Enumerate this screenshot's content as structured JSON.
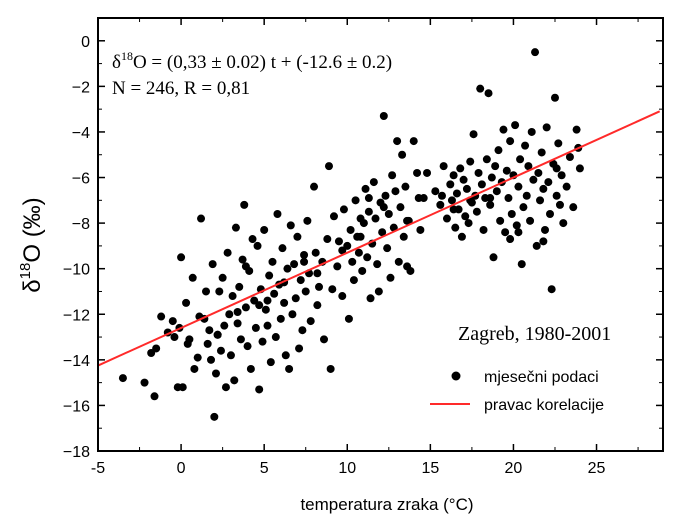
{
  "chart_data": {
    "type": "scatter",
    "xlabel": "temperatura zraka (°C)",
    "ylabel": {
      "prefix": "δ",
      "sup": "18",
      "rest": "O (‰)"
    },
    "xlim": [
      -5,
      29
    ],
    "ylim": [
      -18,
      1
    ],
    "xticks": [
      -5,
      0,
      5,
      10,
      15,
      20,
      25
    ],
    "yticks": [
      0,
      -2,
      -4,
      -6,
      -8,
      -10,
      -12,
      -14,
      -16,
      -18
    ],
    "equation": {
      "line1_prefix": "δ",
      "line1_sup": "18",
      "line1_rest": "O = (0,33 ± 0.02) t + (-12.6 ± 0.2)",
      "line2": "N = 246, R = 0,81"
    },
    "legend": {
      "title": "Zagreb, 1980-2001",
      "points_label": "mjesečni podaci",
      "line_label": "pravac korelacije",
      "placement": "lower-right"
    },
    "regression": {
      "slope": 0.33,
      "intercept": -12.6,
      "x_range": [
        -5,
        28.8
      ],
      "color": "#ff2a2a"
    },
    "point_color": "#000000",
    "series": [
      {
        "values": [
          [
            -3.5,
            -14.8
          ],
          [
            -2.2,
            -15.0
          ],
          [
            -1.8,
            -13.7
          ],
          [
            -1.6,
            -15.6
          ],
          [
            -1.5,
            -13.5
          ],
          [
            -1.2,
            -12.1
          ],
          [
            -0.8,
            -12.8
          ],
          [
            -0.5,
            -12.3
          ],
          [
            -0.2,
            -15.2
          ],
          [
            -0.1,
            -12.6
          ],
          [
            0.0,
            -9.5
          ],
          [
            0.1,
            -15.2
          ],
          [
            0.3,
            -11.5
          ],
          [
            0.5,
            -13.1
          ],
          [
            0.7,
            -10.4
          ],
          [
            0.8,
            -14.4
          ],
          [
            1.0,
            -13.9
          ],
          [
            1.2,
            -7.8
          ],
          [
            1.4,
            -12.2
          ],
          [
            1.5,
            -11.0
          ],
          [
            1.6,
            -13.3
          ],
          [
            1.7,
            -12.7
          ],
          [
            1.8,
            -14.0
          ],
          [
            1.9,
            -9.8
          ],
          [
            2.0,
            -16.5
          ],
          [
            2.1,
            -14.6
          ],
          [
            2.2,
            -12.9
          ],
          [
            2.3,
            -11.0
          ],
          [
            2.4,
            -13.6
          ],
          [
            2.5,
            -10.4
          ],
          [
            2.6,
            -12.5
          ],
          [
            2.7,
            -15.2
          ],
          [
            2.8,
            -9.3
          ],
          [
            2.9,
            -12.0
          ],
          [
            3.0,
            -13.8
          ],
          [
            3.1,
            -11.2
          ],
          [
            3.2,
            -14.9
          ],
          [
            3.3,
            -8.2
          ],
          [
            3.4,
            -12.4
          ],
          [
            3.5,
            -10.8
          ],
          [
            3.6,
            -13.1
          ],
          [
            3.7,
            -9.6
          ],
          [
            3.8,
            -7.2
          ],
          [
            3.9,
            -11.7
          ],
          [
            4.0,
            -13.4
          ],
          [
            4.1,
            -10.1
          ],
          [
            4.2,
            -14.4
          ],
          [
            4.3,
            -8.7
          ],
          [
            4.4,
            -11.4
          ],
          [
            4.5,
            -12.6
          ],
          [
            4.6,
            -9.0
          ],
          [
            4.7,
            -15.3
          ],
          [
            4.8,
            -10.9
          ],
          [
            4.9,
            -13.2
          ],
          [
            5.0,
            -8.3
          ],
          [
            5.1,
            -11.8
          ],
          [
            5.2,
            -12.5
          ],
          [
            5.3,
            -10.3
          ],
          [
            5.4,
            -14.1
          ],
          [
            5.5,
            -9.7
          ],
          [
            5.6,
            -11.1
          ],
          [
            5.7,
            -13.0
          ],
          [
            5.8,
            -7.6
          ],
          [
            5.9,
            -10.7
          ],
          [
            6.0,
            -12.2
          ],
          [
            6.1,
            -9.1
          ],
          [
            6.2,
            -11.5
          ],
          [
            6.3,
            -13.8
          ],
          [
            6.4,
            -10.0
          ],
          [
            6.5,
            -14.4
          ],
          [
            6.6,
            -8.1
          ],
          [
            6.7,
            -12.0
          ],
          [
            6.8,
            -9.8
          ],
          [
            6.9,
            -11.3
          ],
          [
            7.0,
            -8.6
          ],
          [
            7.1,
            -13.5
          ],
          [
            7.2,
            -10.5
          ],
          [
            7.3,
            -12.7
          ],
          [
            7.4,
            -9.4
          ],
          [
            7.5,
            -11.0
          ],
          [
            7.6,
            -7.9
          ],
          [
            7.7,
            -10.2
          ],
          [
            7.8,
            -12.3
          ],
          [
            8.0,
            -6.4
          ],
          [
            8.1,
            -9.3
          ],
          [
            8.2,
            -11.6
          ],
          [
            8.3,
            -10.8
          ],
          [
            8.5,
            -9.7
          ],
          [
            8.6,
            -13.1
          ],
          [
            8.8,
            -8.7
          ],
          [
            8.9,
            -5.5
          ],
          [
            9.0,
            -14.4
          ],
          [
            9.1,
            -10.9
          ],
          [
            9.2,
            -7.7
          ],
          [
            9.4,
            -9.9
          ],
          [
            9.5,
            -8.8
          ],
          [
            9.7,
            -11.2
          ],
          [
            9.8,
            -7.4
          ],
          [
            10.0,
            -9.0
          ],
          [
            10.1,
            -12.2
          ],
          [
            10.2,
            -8.3
          ],
          [
            10.3,
            -9.7
          ],
          [
            10.4,
            -10.5
          ],
          [
            10.5,
            -7.0
          ],
          [
            10.6,
            -8.6
          ],
          [
            10.7,
            -9.3
          ],
          [
            10.8,
            -7.8
          ],
          [
            10.9,
            -10.1
          ],
          [
            11.0,
            -8.0
          ],
          [
            11.1,
            -6.5
          ],
          [
            11.2,
            -9.5
          ],
          [
            11.3,
            -7.5
          ],
          [
            11.4,
            -11.3
          ],
          [
            11.5,
            -8.9
          ],
          [
            11.6,
            -6.2
          ],
          [
            11.7,
            -7.8
          ],
          [
            11.8,
            -9.8
          ],
          [
            11.9,
            -11.0
          ],
          [
            12.0,
            -7.1
          ],
          [
            12.1,
            -8.4
          ],
          [
            12.2,
            -3.3
          ],
          [
            12.3,
            -6.8
          ],
          [
            12.4,
            -9.1
          ],
          [
            12.5,
            -7.6
          ],
          [
            12.6,
            -10.4
          ],
          [
            12.7,
            -5.9
          ],
          [
            12.8,
            -8.2
          ],
          [
            12.9,
            -6.6
          ],
          [
            13.0,
            -4.4
          ],
          [
            13.1,
            -9.7
          ],
          [
            13.2,
            -7.3
          ],
          [
            13.3,
            -5.0
          ],
          [
            13.4,
            -8.6
          ],
          [
            13.5,
            -6.4
          ],
          [
            13.6,
            -9.9
          ],
          [
            13.7,
            -7.9
          ],
          [
            13.8,
            -10.1
          ],
          [
            14.0,
            -4.4
          ],
          [
            14.2,
            -5.8
          ],
          [
            14.4,
            -8.3
          ],
          [
            14.6,
            -6.9
          ],
          [
            14.8,
            -5.8
          ],
          [
            15.3,
            -6.6
          ],
          [
            15.6,
            -7.2
          ],
          [
            15.8,
            -5.5
          ],
          [
            16.0,
            -7.8
          ],
          [
            16.2,
            -6.3
          ],
          [
            16.3,
            -7.0
          ],
          [
            16.4,
            -5.9
          ],
          [
            16.5,
            -8.2
          ],
          [
            16.6,
            -6.7
          ],
          [
            16.7,
            -7.4
          ],
          [
            16.8,
            -5.6
          ],
          [
            16.9,
            -8.6
          ],
          [
            17.0,
            -6.1
          ],
          [
            17.1,
            -7.7
          ],
          [
            17.2,
            -6.5
          ],
          [
            17.3,
            -8.0
          ],
          [
            17.4,
            -5.3
          ],
          [
            17.5,
            -7.1
          ],
          [
            17.6,
            -4.1
          ],
          [
            17.7,
            -6.8
          ],
          [
            17.8,
            -7.5
          ],
          [
            17.9,
            -5.8
          ],
          [
            18.0,
            -2.1
          ],
          [
            18.1,
            -6.3
          ],
          [
            18.2,
            -8.3
          ],
          [
            18.3,
            -6.9
          ],
          [
            18.4,
            -5.2
          ],
          [
            18.5,
            -2.3
          ],
          [
            18.6,
            -7.2
          ],
          [
            18.7,
            -6.0
          ],
          [
            18.8,
            -9.5
          ],
          [
            18.9,
            -5.5
          ],
          [
            19.0,
            -6.6
          ],
          [
            19.1,
            -4.8
          ],
          [
            19.2,
            -7.9
          ],
          [
            19.3,
            -6.2
          ],
          [
            19.4,
            -3.9
          ],
          [
            19.5,
            -8.4
          ],
          [
            19.6,
            -5.7
          ],
          [
            19.7,
            -6.9
          ],
          [
            19.8,
            -4.4
          ],
          [
            19.9,
            -7.6
          ],
          [
            20.0,
            -5.9
          ],
          [
            20.1,
            -3.7
          ],
          [
            20.2,
            -8.1
          ],
          [
            20.3,
            -6.4
          ],
          [
            20.4,
            -5.2
          ],
          [
            20.5,
            -9.8
          ],
          [
            20.6,
            -7.3
          ],
          [
            20.7,
            -4.6
          ],
          [
            20.8,
            -6.8
          ],
          [
            20.9,
            -5.5
          ],
          [
            21.0,
            -7.9
          ],
          [
            21.1,
            -4.0
          ],
          [
            21.2,
            -6.1
          ],
          [
            21.3,
            -0.5
          ],
          [
            21.4,
            -9.0
          ],
          [
            21.5,
            -5.8
          ],
          [
            21.6,
            -7.0
          ],
          [
            21.7,
            -4.9
          ],
          [
            21.8,
            -6.5
          ],
          [
            21.9,
            -8.3
          ],
          [
            22.0,
            -3.8
          ],
          [
            22.1,
            -6.2
          ],
          [
            22.2,
            -7.6
          ],
          [
            22.3,
            -10.9
          ],
          [
            22.4,
            -5.4
          ],
          [
            22.5,
            -2.5
          ],
          [
            22.6,
            -6.8
          ],
          [
            22.7,
            -4.5
          ],
          [
            22.8,
            -7.2
          ],
          [
            22.9,
            -5.9
          ],
          [
            23.0,
            -8.0
          ],
          [
            23.2,
            -6.4
          ],
          [
            23.4,
            -5.1
          ],
          [
            23.6,
            -7.3
          ],
          [
            23.8,
            -3.9
          ],
          [
            24.0,
            -5.6
          ],
          [
            20.3,
            -8.4
          ],
          [
            19.8,
            -8.7
          ],
          [
            21.8,
            -8.8
          ],
          [
            17.4,
            -7.0
          ],
          [
            15.7,
            -6.8
          ],
          [
            14.3,
            -6.9
          ],
          [
            12.2,
            -7.3
          ],
          [
            11.3,
            -6.9
          ],
          [
            9.7,
            -9.2
          ],
          [
            8.2,
            -10.2
          ],
          [
            6.2,
            -10.6
          ],
          [
            5.2,
            -11.4
          ],
          [
            3.4,
            -11.9
          ],
          [
            2.2,
            -12.9
          ],
          [
            1.1,
            -12.1
          ],
          [
            0.4,
            -13.3
          ],
          [
            -0.4,
            -13.0
          ],
          [
            3.9,
            -9.9
          ],
          [
            7.4,
            -9.7
          ],
          [
            10.8,
            -8.6
          ],
          [
            13.6,
            -7.9
          ],
          [
            16.4,
            -7.4
          ],
          [
            18.6,
            -6.9
          ],
          [
            22.6,
            -5.6
          ],
          [
            23.9,
            -4.7
          ],
          [
            4.7,
            -11.6
          ]
        ]
      }
    ]
  }
}
